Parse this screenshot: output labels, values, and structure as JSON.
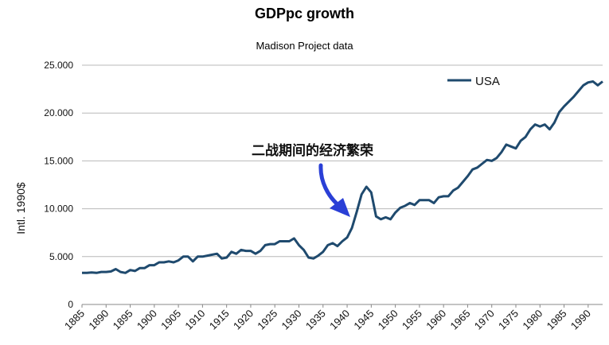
{
  "chart_data": {
    "type": "line",
    "title": "GDPpc growth",
    "subtitle": "Madison Project data",
    "ylabel": "Intl. 1990$",
    "ylim": [
      0,
      25000
    ],
    "yticks": [
      0,
      5000,
      10000,
      15000,
      20000,
      25000
    ],
    "ytick_labels": [
      "0",
      "5.000",
      "10.000",
      "15.000",
      "20.000",
      "25.000"
    ],
    "xlim": [
      1885,
      1993
    ],
    "xtick_labels": [
      "1885",
      "1890",
      "1895",
      "1900",
      "1905",
      "1910",
      "1915",
      "1920",
      "1925",
      "1930",
      "1935",
      "1940",
      "1945",
      "1950",
      "1955",
      "1960",
      "1965",
      "1970",
      "1975",
      "1980",
      "1985",
      "1990"
    ],
    "grid": "horizontal",
    "legend_position": "top-right",
    "color": "#1f4a6e",
    "annotation": "二战期间的经济繁荣",
    "series": [
      {
        "name": "USA",
        "x": [
          1885,
          1886,
          1887,
          1888,
          1889,
          1890,
          1891,
          1892,
          1893,
          1894,
          1895,
          1896,
          1897,
          1898,
          1899,
          1900,
          1901,
          1902,
          1903,
          1904,
          1905,
          1906,
          1907,
          1908,
          1909,
          1910,
          1911,
          1912,
          1913,
          1914,
          1915,
          1916,
          1917,
          1918,
          1919,
          1920,
          1921,
          1922,
          1923,
          1924,
          1925,
          1926,
          1927,
          1928,
          1929,
          1930,
          1931,
          1932,
          1933,
          1934,
          1935,
          1936,
          1937,
          1938,
          1939,
          1940,
          1941,
          1942,
          1943,
          1944,
          1945,
          1946,
          1947,
          1948,
          1949,
          1950,
          1951,
          1952,
          1953,
          1954,
          1955,
          1956,
          1957,
          1958,
          1959,
          1960,
          1961,
          1962,
          1963,
          1964,
          1965,
          1966,
          1967,
          1968,
          1969,
          1970,
          1971,
          1972,
          1973,
          1974,
          1975,
          1976,
          1977,
          1978,
          1979,
          1980,
          1981,
          1982,
          1983,
          1984,
          1985,
          1986,
          1987,
          1988,
          1989,
          1990,
          1991,
          1992,
          1993
        ],
        "values": [
          3300,
          3300,
          3350,
          3300,
          3400,
          3400,
          3450,
          3700,
          3400,
          3300,
          3600,
          3500,
          3800,
          3800,
          4100,
          4100,
          4400,
          4400,
          4500,
          4400,
          4600,
          5000,
          5000,
          4500,
          5000,
          5000,
          5100,
          5200,
          5300,
          4800,
          4900,
          5500,
          5300,
          5700,
          5600,
          5600,
          5300,
          5600,
          6200,
          6300,
          6300,
          6600,
          6600,
          6600,
          6900,
          6200,
          5700,
          4900,
          4800,
          5100,
          5500,
          6200,
          6400,
          6100,
          6600,
          7000,
          8000,
          9700,
          11500,
          12300,
          11700,
          9200,
          8900,
          9100,
          8900,
          9600,
          10100,
          10300,
          10600,
          10400,
          10900,
          10900,
          10900,
          10600,
          11200,
          11300,
          11300,
          11900,
          12200,
          12800,
          13400,
          14100,
          14300,
          14700,
          15100,
          15000,
          15300,
          15900,
          16700,
          16500,
          16300,
          17100,
          17500,
          18300,
          18800,
          18600,
          18800,
          18300,
          19000,
          20100,
          20700,
          21200,
          21700,
          22300,
          22900,
          23200,
          23300,
          22900,
          23300
        ]
      }
    ]
  }
}
